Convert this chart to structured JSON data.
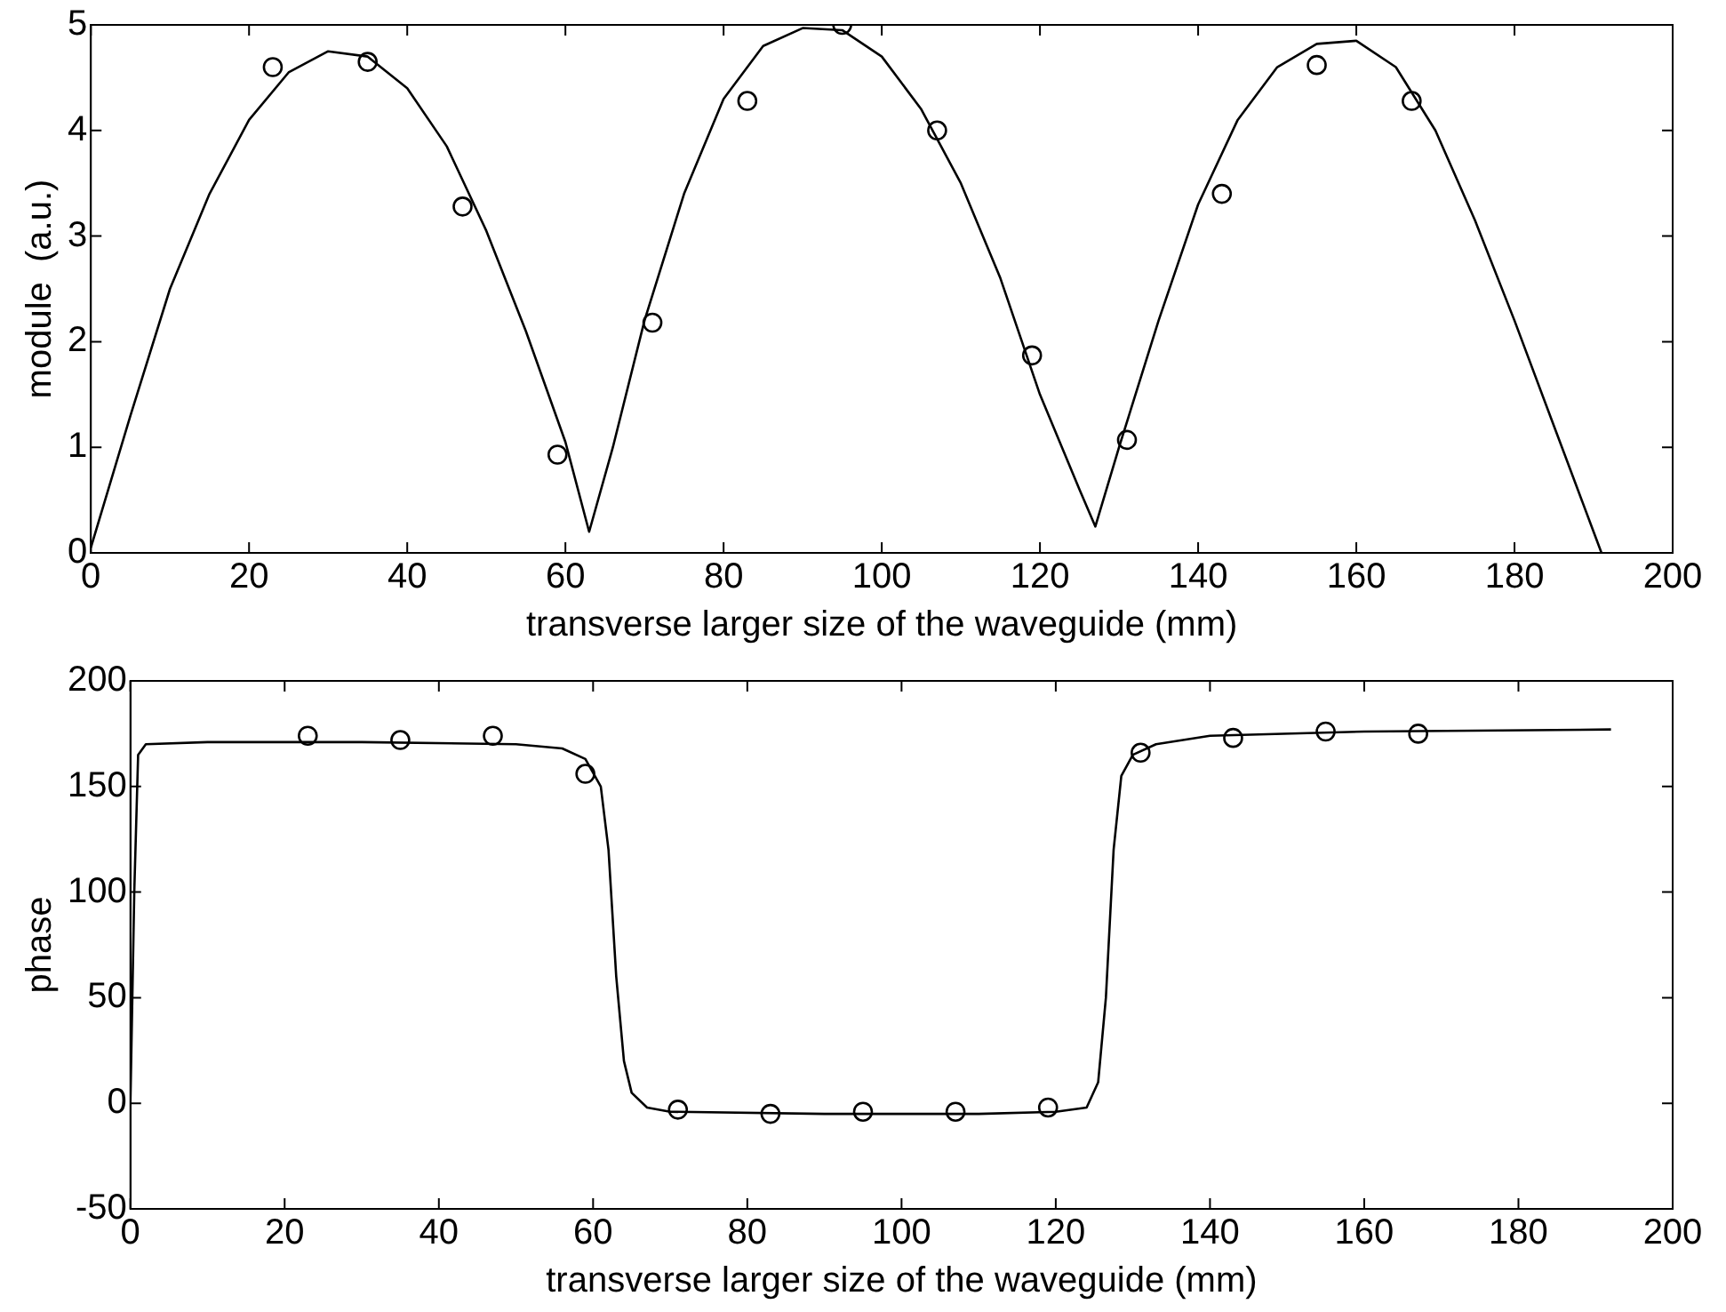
{
  "chart_data": [
    {
      "type": "scatter",
      "xlabel": "transverse larger size of the waveguide (mm)",
      "ylabel": "module  (a.u.)",
      "xlim": [
        0,
        200
      ],
      "xticks": [
        0,
        20,
        40,
        60,
        80,
        100,
        120,
        140,
        160,
        180,
        200
      ],
      "ylim": [
        0,
        5
      ],
      "yticks": [
        0,
        1,
        2,
        3,
        4,
        5
      ],
      "grid": false,
      "legend": false,
      "series": [
        {
          "type": "line",
          "color": "#000000",
          "marker": "none",
          "line_style": "solid",
          "x": [
            0,
            5,
            10,
            15,
            20,
            25,
            30,
            35,
            40,
            45,
            50,
            55,
            60,
            63,
            66,
            70,
            75,
            80,
            85,
            90,
            95,
            100,
            105,
            110,
            115,
            120,
            125,
            127,
            130,
            135,
            140,
            145,
            150,
            155,
            160,
            165,
            170,
            175,
            180,
            185,
            190,
            191
          ],
          "values": [
            0.05,
            1.3,
            2.5,
            3.4,
            4.1,
            4.55,
            4.75,
            4.7,
            4.4,
            3.85,
            3.05,
            2.1,
            1.05,
            0.2,
            1.0,
            2.2,
            3.4,
            4.3,
            4.8,
            4.97,
            4.95,
            4.7,
            4.2,
            3.5,
            2.6,
            1.5,
            0.6,
            0.25,
            1.0,
            2.2,
            3.3,
            4.1,
            4.6,
            4.82,
            4.85,
            4.6,
            4.0,
            3.15,
            2.2,
            1.2,
            0.2,
            0
          ]
        },
        {
          "type": "scatter",
          "color": "#000000",
          "marker": "circle",
          "x": [
            23,
            35,
            47,
            59,
            71,
            83,
            95,
            107,
            119,
            131,
            143,
            155,
            167
          ],
          "values": [
            4.6,
            4.65,
            3.28,
            0.93,
            2.18,
            4.28,
            5.0,
            4.0,
            1.87,
            1.07,
            3.4,
            4.62,
            4.28
          ]
        }
      ]
    },
    {
      "type": "scatter",
      "xlabel": "transverse larger size of the waveguide (mm)",
      "ylabel": "phase",
      "xlim": [
        0,
        200
      ],
      "xticks": [
        0,
        20,
        40,
        60,
        80,
        100,
        120,
        140,
        160,
        180,
        200
      ],
      "ylim": [
        -50,
        200
      ],
      "yticks": [
        -50,
        0,
        50,
        100,
        150,
        200
      ],
      "grid": false,
      "legend": false,
      "series": [
        {
          "type": "line",
          "color": "#000000",
          "marker": "none",
          "line_style": "solid",
          "x": [
            0,
            0.5,
            1,
            2,
            10,
            30,
            50,
            56,
            59,
            61,
            62,
            63,
            64,
            65,
            67,
            70,
            90,
            110,
            120,
            124,
            125.5,
            126.5,
            127.5,
            128.5,
            130,
            133,
            140,
            160,
            192
          ],
          "values": [
            0,
            100,
            165,
            170,
            171,
            171,
            170,
            168,
            163,
            150,
            120,
            60,
            20,
            5,
            -2,
            -4,
            -5,
            -5,
            -4,
            -2,
            10,
            50,
            120,
            155,
            165,
            170,
            174,
            176,
            177
          ]
        },
        {
          "type": "scatter",
          "color": "#000000",
          "marker": "circle",
          "x": [
            23,
            35,
            47,
            59,
            71,
            83,
            95,
            107,
            119,
            131,
            143,
            155,
            167
          ],
          "values": [
            174,
            172,
            174,
            156,
            -3,
            -5,
            -4,
            -4,
            -2,
            166,
            173,
            176,
            175
          ]
        }
      ]
    }
  ]
}
